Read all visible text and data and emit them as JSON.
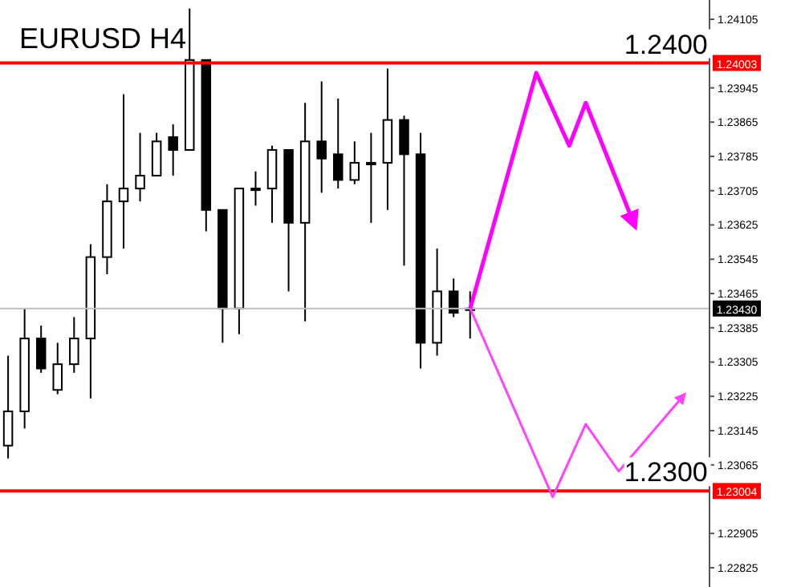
{
  "chart_data": {
    "type": "candlestick",
    "title": "EURUSD H4",
    "categories": [
      null,
      null,
      null,
      null,
      null,
      null,
      null,
      null,
      null,
      null,
      null,
      null,
      null,
      null,
      null,
      null,
      null,
      null,
      null,
      null,
      null,
      null,
      null,
      null,
      null,
      null,
      null,
      null,
      null,
      null,
      null,
      null,
      null,
      null,
      null,
      null,
      null,
      null,
      null,
      null,
      null,
      null,
      null
    ],
    "ohlc": [
      [
        1.2311,
        1.2332,
        1.2308,
        1.2319
      ],
      [
        1.2319,
        1.2343,
        1.2315,
        1.2336
      ],
      [
        1.2336,
        1.2339,
        1.2328,
        1.2329
      ],
      [
        1.2324,
        1.2335,
        1.2323,
        1.233
      ],
      [
        1.233,
        1.2341,
        1.2328,
        1.2336
      ],
      [
        1.2336,
        1.2358,
        1.2322,
        1.2355
      ],
      [
        1.2355,
        1.2372,
        1.2351,
        1.2368
      ],
      [
        1.2368,
        1.2393,
        1.2357,
        1.2371
      ],
      [
        1.2371,
        1.2384,
        1.2368,
        1.2374
      ],
      [
        1.2374,
        1.2384,
        1.2374,
        1.2382
      ],
      [
        1.2383,
        1.2386,
        1.2374,
        1.238
      ],
      [
        1.238,
        1.2413,
        1.238,
        1.2401
      ],
      [
        1.2401,
        1.2401,
        1.2361,
        1.2366
      ],
      [
        1.2366,
        1.2366,
        1.2335,
        1.2343
      ],
      [
        1.2343,
        1.2371,
        1.2337,
        1.2371
      ],
      [
        1.2371,
        1.2375,
        1.2367,
        1.2371
      ],
      [
        1.2371,
        1.2381,
        1.2363,
        1.238
      ],
      [
        1.238,
        1.238,
        1.2347,
        1.2363
      ],
      [
        1.2363,
        1.2391,
        1.234,
        1.2382
      ],
      [
        1.2382,
        1.2396,
        1.237,
        1.2378
      ],
      [
        1.2379,
        1.2392,
        1.2371,
        1.2373
      ],
      [
        1.2373,
        1.2382,
        1.2372,
        1.2377
      ],
      [
        1.2377,
        1.2384,
        1.2363,
        1.2377
      ],
      [
        1.2377,
        1.2399,
        1.2366,
        1.2387
      ],
      [
        1.2387,
        1.2388,
        1.2353,
        1.2379
      ],
      [
        1.2379,
        1.2384,
        1.2329,
        1.2335
      ],
      [
        1.2335,
        1.2357,
        1.2332,
        1.2347
      ],
      [
        1.2347,
        1.235,
        1.2341,
        1.2342
      ],
      [
        1.2343,
        1.2347,
        1.2336,
        1.2343
      ],
      null,
      null,
      null,
      null,
      null,
      null,
      null,
      null,
      null,
      null,
      null,
      null,
      null,
      null
    ],
    "series": [
      {
        "type": "line",
        "color": "#ff00ff",
        "values": [
          null,
          null,
          null,
          null,
          null,
          null,
          null,
          null,
          null,
          null,
          null,
          null,
          null,
          null,
          null,
          null,
          null,
          null,
          null,
          null,
          null,
          null,
          null,
          null,
          null,
          null,
          null,
          null,
          1.2343,
          null,
          null,
          null,
          1.2398,
          null,
          1.2381,
          1.2391,
          null,
          null,
          1.2362,
          null,
          null,
          null,
          null
        ]
      },
      {
        "type": "line",
        "color": "#ff44ff",
        "values": [
          null,
          null,
          null,
          null,
          null,
          null,
          null,
          null,
          null,
          null,
          null,
          null,
          null,
          null,
          null,
          null,
          null,
          null,
          null,
          null,
          null,
          null,
          null,
          null,
          null,
          null,
          null,
          null,
          1.2343,
          null,
          null,
          null,
          null,
          1.2299,
          null,
          1.2316,
          null,
          1.2305,
          null,
          null,
          null,
          1.2323,
          null
        ]
      }
    ],
    "ylim": [
      1.2278,
      1.2415
    ],
    "yticks": [
      1.24105,
      1.23945,
      1.23865,
      1.23785,
      1.23705,
      1.23625,
      1.23545,
      1.23465,
      1.23385,
      1.23305,
      1.23225,
      1.23145,
      1.23065,
      1.22905,
      1.22825
    ],
    "ref_lines": [
      {
        "axis": "y",
        "value": 1.24003,
        "label": "1.24003",
        "color": "#ff0000"
      },
      {
        "axis": "y",
        "value": 1.2343,
        "label": "1.23430",
        "color": "#c0c0c0"
      },
      {
        "axis": "y",
        "value": 1.23004,
        "label": "1.23004",
        "color": "#ff0000"
      }
    ],
    "annotations": [
      {
        "text": "1.2400",
        "y": 1.24003
      },
      {
        "text": "1.2300",
        "y": 1.23004
      }
    ],
    "tick_labels": "y"
  }
}
